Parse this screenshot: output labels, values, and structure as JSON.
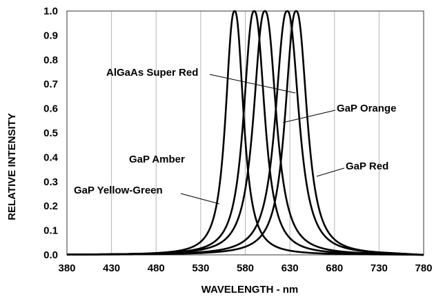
{
  "chart_data": {
    "type": "line",
    "title": "",
    "xlabel": "WAVELENGTH - nm",
    "ylabel": "RELATIVE INTENSITY",
    "xlim": [
      380,
      780
    ],
    "ylim": [
      0,
      1.0
    ],
    "x_ticks": [
      "380",
      "430",
      "480",
      "530",
      "580",
      "630",
      "680",
      "730",
      "780"
    ],
    "y_ticks": [
      "0.0",
      "0.1",
      "0.2",
      "0.3",
      "0.4",
      "0.5",
      "0.6",
      "0.7",
      "0.8",
      "0.9",
      "1.0"
    ],
    "grid": "vertical",
    "series": [
      {
        "name": "GaP Yellow-Green",
        "peak": 568,
        "fwhm": 23
      },
      {
        "name": "GaP Amber",
        "peak": 590,
        "fwhm": 27
      },
      {
        "name": "GaP Orange",
        "peak": 602,
        "fwhm": 29
      },
      {
        "name": "AlGaAs Super Red",
        "peak": 627,
        "fwhm": 30
      },
      {
        "name": "GaP Red",
        "peak": 637,
        "fwhm": 28
      }
    ],
    "annotations": [
      {
        "text": "AlGaAs Super Red",
        "series": "AlGaAs Super Red"
      },
      {
        "text": "GaP Orange",
        "series": "GaP Orange"
      },
      {
        "text": "GaP Amber",
        "series": "GaP Amber"
      },
      {
        "text": "GaP Red",
        "series": "GaP Red"
      },
      {
        "text": "GaP Yellow-Green",
        "series": "GaP Yellow-Green"
      }
    ]
  }
}
